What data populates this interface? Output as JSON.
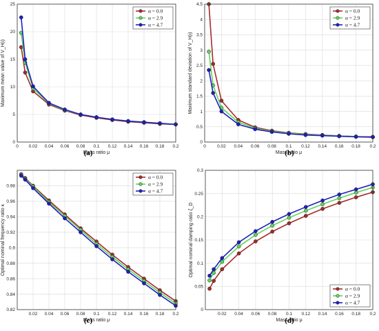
{
  "colors": {
    "red": "#a52a2a",
    "green": "#5fd35f",
    "blue": "#1f1fbf",
    "grid": "#d9d9d9"
  },
  "legend": [
    "α = 0.0",
    "α = 2.9",
    "α = 4.7"
  ],
  "chart_data": [
    {
      "type": "line",
      "panel_label": "(a)",
      "xlabel": "Mass ratio μ",
      "ylabel": "Maximum mean value of V_H(ι)",
      "xlim": [
        0,
        0.2
      ],
      "ylim": [
        0,
        25
      ],
      "xticks": [
        0,
        0.02,
        0.04,
        0.06,
        0.08,
        0.1,
        0.12,
        0.14,
        0.16,
        0.18,
        0.2
      ],
      "xtick_labels": [
        "0",
        "0.02",
        "0.04",
        "0.06",
        "0.08",
        "0.1",
        "0.12",
        "0.14",
        "0.16",
        "0.18",
        "0.2"
      ],
      "yticks": [
        0,
        5,
        10,
        15,
        20,
        25
      ],
      "ytick_labels": [
        "0",
        "5",
        "10",
        "15",
        "20",
        "25"
      ],
      "grid": true,
      "legend_position": "top-right",
      "x": [
        0.005,
        0.01,
        0.02,
        0.04,
        0.06,
        0.08,
        0.1,
        0.12,
        0.14,
        0.16,
        0.18,
        0.2
      ],
      "series": [
        {
          "name": "α = 0.0",
          "values": [
            17.2,
            12.6,
            9.2,
            6.8,
            5.7,
            4.9,
            4.4,
            4.0,
            3.7,
            3.5,
            3.3,
            3.2
          ]
        },
        {
          "name": "α = 2.9",
          "values": [
            19.8,
            14.4,
            9.7,
            7.0,
            5.8,
            5.0,
            4.5,
            4.1,
            3.8,
            3.6,
            3.4,
            3.2
          ]
        },
        {
          "name": "α = 4.7",
          "values": [
            22.6,
            15.0,
            10.1,
            7.1,
            5.9,
            5.0,
            4.5,
            4.1,
            3.8,
            3.6,
            3.4,
            3.2
          ]
        }
      ]
    },
    {
      "type": "line",
      "panel_label": "(b)",
      "xlabel": "Mass ratio μ",
      "ylabel": "Maximum standard deviation of V_H(ι)",
      "xlim": [
        0,
        0.2
      ],
      "ylim": [
        0,
        4.5
      ],
      "xticks": [
        0,
        0.02,
        0.04,
        0.06,
        0.08,
        0.1,
        0.12,
        0.14,
        0.16,
        0.18,
        0.2
      ],
      "xtick_labels": [
        "0",
        "0.02",
        "0.04",
        "0.06",
        "0.08",
        "0.1",
        "0.12",
        "0.14",
        "0.16",
        "0.18",
        "0.2"
      ],
      "yticks": [
        0,
        0.5,
        1,
        1.5,
        2,
        2.5,
        3,
        3.5,
        4,
        4.5
      ],
      "ytick_labels": [
        "0",
        "0.5",
        "1",
        "1.5",
        "2",
        "2.5",
        "3",
        "3.5",
        "4",
        "4.5"
      ],
      "grid": true,
      "legend_position": "top-right",
      "x": [
        0.005,
        0.01,
        0.02,
        0.04,
        0.06,
        0.08,
        0.1,
        0.12,
        0.14,
        0.16,
        0.18,
        0.2
      ],
      "series": [
        {
          "name": "α = 0.0",
          "values": [
            4.5,
            2.55,
            1.35,
            0.72,
            0.48,
            0.37,
            0.3,
            0.26,
            0.23,
            0.2,
            0.18,
            0.17
          ]
        },
        {
          "name": "α = 2.9",
          "values": [
            2.95,
            1.85,
            1.12,
            0.65,
            0.45,
            0.35,
            0.29,
            0.25,
            0.22,
            0.2,
            0.18,
            0.16
          ]
        },
        {
          "name": "α = 4.7",
          "values": [
            2.35,
            1.6,
            1.0,
            0.58,
            0.42,
            0.33,
            0.27,
            0.23,
            0.21,
            0.19,
            0.17,
            0.16
          ]
        }
      ]
    },
    {
      "type": "line",
      "panel_label": "(c)",
      "xlabel": "Mass ratio μ",
      "ylabel": "Optimal nominal frequency ratio κ",
      "xlim": [
        0,
        0.2
      ],
      "ylim": [
        0.82,
        1.0
      ],
      "xticks": [
        0.02,
        0.04,
        0.06,
        0.08,
        0.1,
        0.12,
        0.14,
        0.16,
        0.18,
        0.2
      ],
      "xtick_labels": [
        "0.02",
        "0.04",
        "0.06",
        "0.08",
        "0.1",
        "0.12",
        "0.14",
        "0.16",
        "0.18",
        "0.2"
      ],
      "yticks": [
        0.82,
        0.84,
        0.86,
        0.88,
        0.9,
        0.92,
        0.94,
        0.96,
        0.98
      ],
      "ytick_labels": [
        "0.82",
        "0.84",
        "0.86",
        "0.88",
        "0.9",
        "0.92",
        "0.94",
        "0.96",
        "0.98"
      ],
      "grid": true,
      "legend_position": "top-right",
      "x": [
        0.005,
        0.01,
        0.02,
        0.04,
        0.06,
        0.08,
        0.1,
        0.12,
        0.14,
        0.16,
        0.18,
        0.2
      ],
      "series": [
        {
          "name": "α = 0.0",
          "values": [
            0.995,
            0.99,
            0.98,
            0.961,
            0.943,
            0.925,
            0.908,
            0.891,
            0.875,
            0.86,
            0.845,
            0.831
          ]
        },
        {
          "name": "α = 2.9",
          "values": [
            0.994,
            0.989,
            0.979,
            0.959,
            0.941,
            0.923,
            0.905,
            0.888,
            0.872,
            0.857,
            0.842,
            0.828
          ]
        },
        {
          "name": "α = 4.7",
          "values": [
            0.993,
            0.988,
            0.977,
            0.957,
            0.938,
            0.92,
            0.902,
            0.885,
            0.869,
            0.854,
            0.839,
            0.825
          ]
        }
      ]
    },
    {
      "type": "line",
      "panel_label": "(d)",
      "xlabel": "Mass ratio μ",
      "ylabel": "Optimal nominal damping ratio ζ_D",
      "xlim": [
        0,
        0.2
      ],
      "ylim": [
        0,
        0.3
      ],
      "xticks": [
        0.02,
        0.04,
        0.06,
        0.08,
        0.1,
        0.12,
        0.14,
        0.16,
        0.18,
        0.2
      ],
      "xtick_labels": [
        "0.02",
        "0.04",
        "0.06",
        "0.08",
        "0.1",
        "0.12",
        "0.14",
        "0.16",
        "0.18",
        "0.2"
      ],
      "yticks": [
        0,
        0.05,
        0.1,
        0.15,
        0.2,
        0.25,
        0.3
      ],
      "ytick_labels": [
        "0",
        "0.05",
        "0.1",
        "0.15",
        "0.2",
        "0.25",
        "0.3"
      ],
      "grid": true,
      "legend_position": "bottom-right",
      "x": [
        0.005,
        0.01,
        0.02,
        0.04,
        0.06,
        0.08,
        0.1,
        0.12,
        0.14,
        0.16,
        0.18,
        0.2
      ],
      "series": [
        {
          "name": "α = 0.0",
          "values": [
            0.045,
            0.062,
            0.087,
            0.121,
            0.147,
            0.168,
            0.186,
            0.202,
            0.217,
            0.23,
            0.242,
            0.253
          ]
        },
        {
          "name": "α = 2.9",
          "values": [
            0.063,
            0.079,
            0.103,
            0.136,
            0.161,
            0.181,
            0.198,
            0.213,
            0.227,
            0.24,
            0.252,
            0.263
          ]
        },
        {
          "name": "α = 4.7",
          "values": [
            0.073,
            0.087,
            0.111,
            0.145,
            0.169,
            0.189,
            0.206,
            0.221,
            0.235,
            0.248,
            0.259,
            0.27
          ]
        }
      ]
    }
  ]
}
